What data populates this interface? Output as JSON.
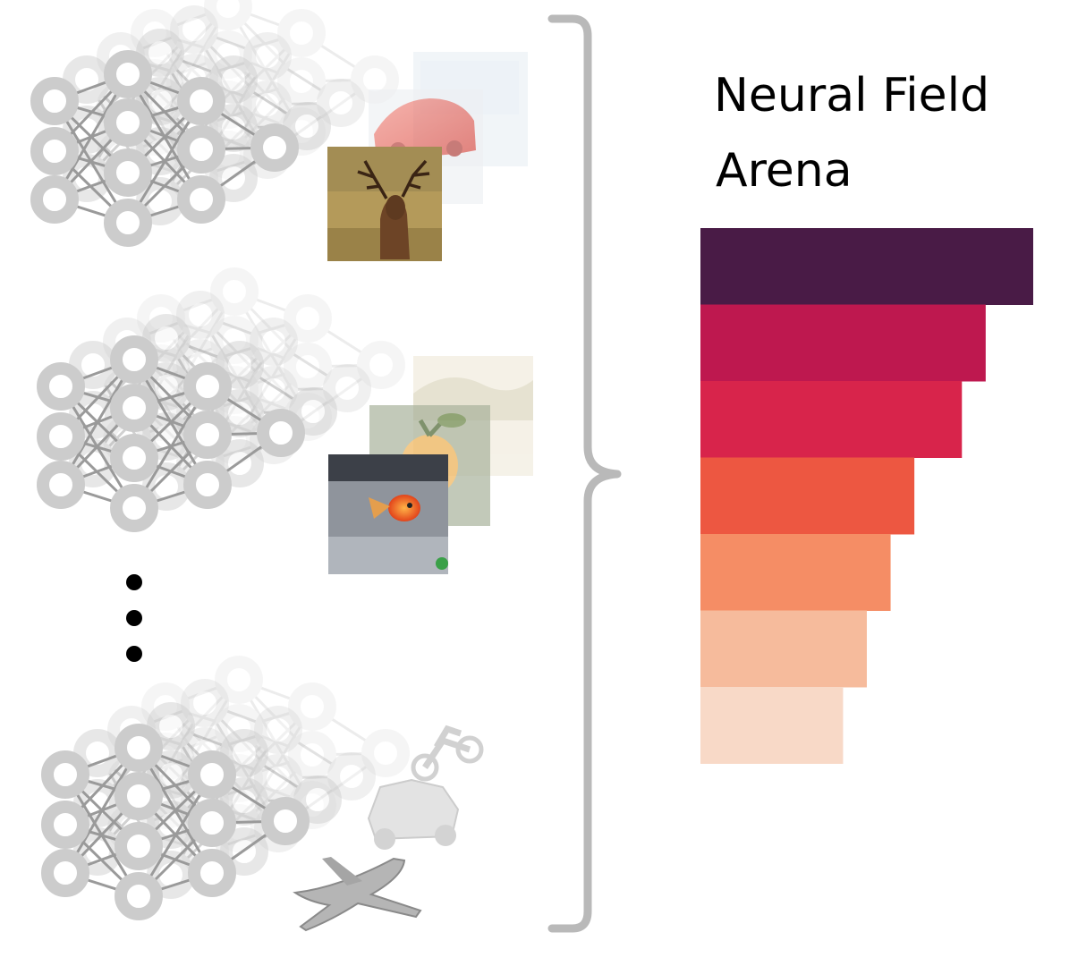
{
  "title": {
    "line1": "Neural Field",
    "line2": "Arena"
  },
  "network_groups": [
    {
      "id": "image-networks-top",
      "thumbnails": [
        "car-image-thumbnail",
        "deer-image-thumbnail"
      ]
    },
    {
      "id": "image-networks-middle",
      "thumbnails": [
        "landscape-image-thumbnail",
        "orange-image-thumbnail",
        "goldfish-image-thumbnail"
      ]
    },
    {
      "id": "shape-networks-bottom",
      "thumbnails": [
        "motorcycle-shape-thumbnail",
        "car-shape-thumbnail",
        "airplane-shape-thumbnail"
      ]
    }
  ],
  "ellipsis_dots": 3,
  "ranking_bars": {
    "values": [
      7,
      6,
      5.5,
      4.5,
      4,
      3.5,
      3
    ],
    "colors": [
      "#491B46",
      "#BE184F",
      "#D8244B",
      "#ED5741",
      "#F58D65",
      "#F6BB9C",
      "#F8D9C7"
    ]
  },
  "colors": {
    "node": "#cccccc",
    "edge": "#9a9a9a",
    "brace": "#b9b9b9"
  }
}
